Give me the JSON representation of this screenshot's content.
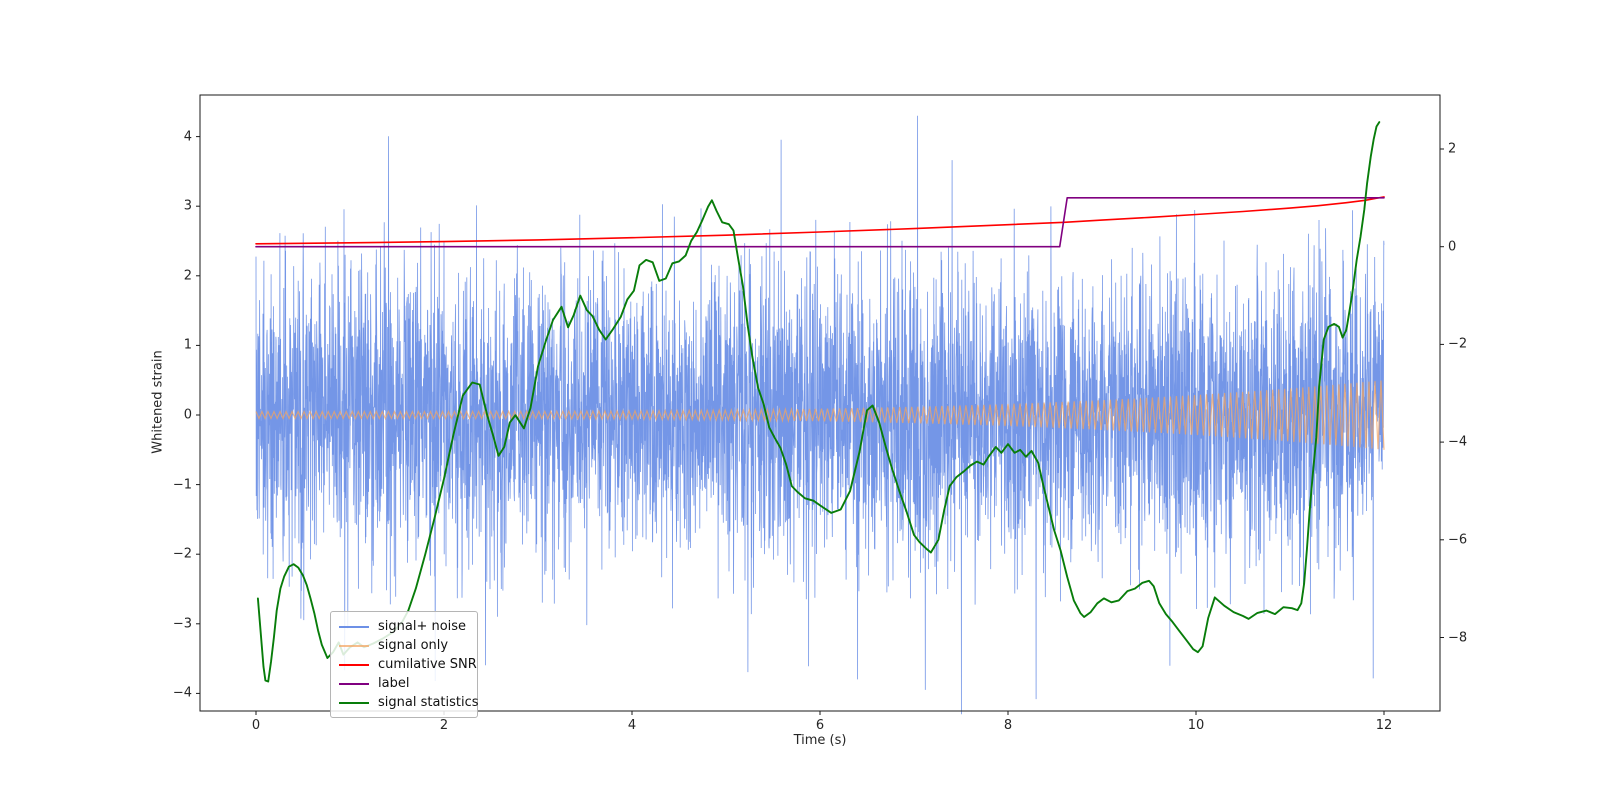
{
  "axes": {
    "xlabel": "Time (s)",
    "ylabel_left": "Whitened strain"
  },
  "legend": {
    "entries": [
      {
        "label": "signal+ noise",
        "color": "#6d90e6",
        "opacity": 1.0
      },
      {
        "label": "signal only",
        "color": "#f4a460",
        "opacity": 0.72
      },
      {
        "label": "cumilative SNR",
        "color": "#ff0000",
        "opacity": 1.0
      },
      {
        "label": "label",
        "color": "#800080",
        "opacity": 1.0
      },
      {
        "label": "signal statistics",
        "color": "#087d0a",
        "opacity": 1.0
      }
    ]
  },
  "chart_data": {
    "type": "line",
    "title": "",
    "xlabel": "Time (s)",
    "ylabel_left": "Whitened strain",
    "ylabel_right": "",
    "x_range": [
      -0.6,
      12.6
    ],
    "y_left_range": [
      -4.25,
      4.6
    ],
    "y_right_range": [
      -9.5,
      3.1
    ],
    "x_tick_values": [
      0,
      2,
      4,
      6,
      8,
      10,
      12
    ],
    "y_left_tick_values": [
      4,
      3,
      2,
      1,
      0,
      -1,
      -2,
      -3,
      -4
    ],
    "y_right_tick_values": [
      2,
      0,
      -2,
      -4,
      -6,
      -8
    ],
    "grid": false,
    "legend_position": "lower left",
    "series": [
      {
        "name": "signal+ noise",
        "axis": "left",
        "kind": "noise",
        "color": "#6d90e6",
        "opacity": 0.95,
        "width": 0.8,
        "params": {
          "seed": 42,
          "n": 5000,
          "t_min": 0,
          "t_max": 12,
          "sigma": 1.05,
          "spike_threshold": 3.1,
          "spike_scale": 1.15,
          "clip": 4.3,
          "observed_band": [
            -2.6,
            2.6
          ],
          "observed_extremes": [
            -3.9,
            4.2
          ]
        }
      },
      {
        "name": "signal only",
        "axis": "left",
        "kind": "chirp",
        "color": "#f4a460",
        "opacity": 0.72,
        "width": 1.2,
        "params": {
          "t_min": 0,
          "t_max": 12,
          "step": 0.032,
          "amp0": 0.05,
          "amp_gain": 0.45,
          "power": 3.5,
          "amp_end": 0.5
        }
      },
      {
        "name": "cumilative SNR",
        "axis": "right",
        "kind": "line",
        "color": "#ff0000",
        "width": 1.6,
        "points": [
          [
            0,
            0.06
          ],
          [
            1,
            0.08
          ],
          [
            2,
            0.105
          ],
          [
            3,
            0.14
          ],
          [
            4,
            0.185
          ],
          [
            5,
            0.235
          ],
          [
            6,
            0.3
          ],
          [
            7,
            0.37
          ],
          [
            8,
            0.45
          ],
          [
            8.6,
            0.5
          ],
          [
            9,
            0.545
          ],
          [
            9.5,
            0.6
          ],
          [
            10,
            0.66
          ],
          [
            10.5,
            0.72
          ],
          [
            11,
            0.79
          ],
          [
            11.3,
            0.84
          ],
          [
            11.6,
            0.9
          ],
          [
            11.8,
            0.95
          ],
          [
            12,
            1.02
          ]
        ]
      },
      {
        "name": "label",
        "axis": "right",
        "kind": "line",
        "color": "#800080",
        "width": 1.6,
        "points": [
          [
            0,
            0
          ],
          [
            8.55,
            0
          ],
          [
            8.63,
            1.0
          ],
          [
            12,
            1.0
          ]
        ]
      },
      {
        "name": "signal statistics",
        "axis": "right",
        "kind": "line",
        "color": "#087d0a",
        "width": 1.9,
        "points": [
          [
            0.02,
            -7.2
          ],
          [
            0.05,
            -7.9
          ],
          [
            0.08,
            -8.6
          ],
          [
            0.1,
            -8.88
          ],
          [
            0.13,
            -8.9
          ],
          [
            0.16,
            -8.5
          ],
          [
            0.19,
            -8.0
          ],
          [
            0.22,
            -7.45
          ],
          [
            0.26,
            -7.0
          ],
          [
            0.3,
            -6.75
          ],
          [
            0.35,
            -6.55
          ],
          [
            0.4,
            -6.5
          ],
          [
            0.45,
            -6.57
          ],
          [
            0.5,
            -6.73
          ],
          [
            0.54,
            -6.93
          ],
          [
            0.58,
            -7.2
          ],
          [
            0.62,
            -7.5
          ],
          [
            0.66,
            -7.85
          ],
          [
            0.7,
            -8.15
          ],
          [
            0.76,
            -8.42
          ],
          [
            0.82,
            -8.3
          ],
          [
            0.88,
            -8.1
          ],
          [
            0.93,
            -8.35
          ],
          [
            1.0,
            -8.2
          ],
          [
            1.08,
            -8.1
          ],
          [
            1.15,
            -8.2
          ],
          [
            1.25,
            -8.12
          ],
          [
            1.35,
            -8.02
          ],
          [
            1.45,
            -7.9
          ],
          [
            1.55,
            -7.7
          ],
          [
            1.62,
            -7.45
          ],
          [
            1.7,
            -7.0
          ],
          [
            1.8,
            -6.3
          ],
          [
            1.9,
            -5.55
          ],
          [
            2.0,
            -4.75
          ],
          [
            2.1,
            -3.85
          ],
          [
            2.2,
            -3.05
          ],
          [
            2.3,
            -2.78
          ],
          [
            2.38,
            -2.82
          ],
          [
            2.46,
            -3.45
          ],
          [
            2.52,
            -3.85
          ],
          [
            2.58,
            -4.28
          ],
          [
            2.64,
            -4.1
          ],
          [
            2.7,
            -3.6
          ],
          [
            2.76,
            -3.45
          ],
          [
            2.85,
            -3.72
          ],
          [
            2.92,
            -3.3
          ],
          [
            3.0,
            -2.45
          ],
          [
            3.08,
            -1.95
          ],
          [
            3.16,
            -1.5
          ],
          [
            3.25,
            -1.23
          ],
          [
            3.32,
            -1.65
          ],
          [
            3.38,
            -1.4
          ],
          [
            3.45,
            -1.0
          ],
          [
            3.52,
            -1.3
          ],
          [
            3.58,
            -1.42
          ],
          [
            3.65,
            -1.7
          ],
          [
            3.72,
            -1.9
          ],
          [
            3.8,
            -1.68
          ],
          [
            3.88,
            -1.44
          ],
          [
            3.95,
            -1.08
          ],
          [
            4.02,
            -0.9
          ],
          [
            4.08,
            -0.38
          ],
          [
            4.15,
            -0.27
          ],
          [
            4.22,
            -0.32
          ],
          [
            4.29,
            -0.7
          ],
          [
            4.36,
            -0.65
          ],
          [
            4.43,
            -0.34
          ],
          [
            4.5,
            -0.3
          ],
          [
            4.57,
            -0.18
          ],
          [
            4.63,
            0.12
          ],
          [
            4.69,
            0.3
          ],
          [
            4.75,
            0.55
          ],
          [
            4.81,
            0.82
          ],
          [
            4.85,
            0.95
          ],
          [
            4.9,
            0.73
          ],
          [
            4.96,
            0.5
          ],
          [
            5.03,
            0.46
          ],
          [
            5.08,
            0.33
          ],
          [
            5.13,
            -0.25
          ],
          [
            5.18,
            -0.8
          ],
          [
            5.23,
            -1.6
          ],
          [
            5.28,
            -2.25
          ],
          [
            5.34,
            -2.88
          ],
          [
            5.4,
            -3.22
          ],
          [
            5.46,
            -3.7
          ],
          [
            5.52,
            -3.92
          ],
          [
            5.58,
            -4.12
          ],
          [
            5.64,
            -4.46
          ],
          [
            5.7,
            -4.9
          ],
          [
            5.76,
            -5.02
          ],
          [
            5.84,
            -5.15
          ],
          [
            5.93,
            -5.2
          ],
          [
            6.02,
            -5.32
          ],
          [
            6.12,
            -5.45
          ],
          [
            6.22,
            -5.38
          ],
          [
            6.32,
            -5.0
          ],
          [
            6.42,
            -4.2
          ],
          [
            6.5,
            -3.35
          ],
          [
            6.56,
            -3.25
          ],
          [
            6.63,
            -3.6
          ],
          [
            6.7,
            -4.1
          ],
          [
            6.76,
            -4.5
          ],
          [
            6.84,
            -4.98
          ],
          [
            6.92,
            -5.42
          ],
          [
            7.0,
            -5.9
          ],
          [
            7.06,
            -6.05
          ],
          [
            7.13,
            -6.18
          ],
          [
            7.18,
            -6.26
          ],
          [
            7.26,
            -6.0
          ],
          [
            7.32,
            -5.4
          ],
          [
            7.38,
            -4.9
          ],
          [
            7.45,
            -4.72
          ],
          [
            7.53,
            -4.6
          ],
          [
            7.6,
            -4.48
          ],
          [
            7.67,
            -4.4
          ],
          [
            7.74,
            -4.46
          ],
          [
            7.8,
            -4.28
          ],
          [
            7.87,
            -4.1
          ],
          [
            7.93,
            -4.22
          ],
          [
            8.0,
            -4.04
          ],
          [
            8.07,
            -4.22
          ],
          [
            8.13,
            -4.16
          ],
          [
            8.19,
            -4.3
          ],
          [
            8.25,
            -4.18
          ],
          [
            8.32,
            -4.42
          ],
          [
            8.38,
            -4.92
          ],
          [
            8.44,
            -5.4
          ],
          [
            8.49,
            -5.8
          ],
          [
            8.56,
            -6.22
          ],
          [
            8.63,
            -6.76
          ],
          [
            8.7,
            -7.24
          ],
          [
            8.77,
            -7.5
          ],
          [
            8.81,
            -7.58
          ],
          [
            8.88,
            -7.48
          ],
          [
            8.95,
            -7.3
          ],
          [
            9.02,
            -7.2
          ],
          [
            9.1,
            -7.28
          ],
          [
            9.18,
            -7.24
          ],
          [
            9.27,
            -7.05
          ],
          [
            9.35,
            -7.0
          ],
          [
            9.43,
            -6.88
          ],
          [
            9.5,
            -6.84
          ],
          [
            9.55,
            -6.95
          ],
          [
            9.61,
            -7.3
          ],
          [
            9.68,
            -7.52
          ],
          [
            9.75,
            -7.68
          ],
          [
            9.82,
            -7.86
          ],
          [
            9.9,
            -8.06
          ],
          [
            9.97,
            -8.24
          ],
          [
            10.02,
            -8.3
          ],
          [
            10.07,
            -8.18
          ],
          [
            10.13,
            -7.6
          ],
          [
            10.2,
            -7.18
          ],
          [
            10.3,
            -7.35
          ],
          [
            10.4,
            -7.48
          ],
          [
            10.5,
            -7.56
          ],
          [
            10.56,
            -7.62
          ],
          [
            10.65,
            -7.5
          ],
          [
            10.75,
            -7.45
          ],
          [
            10.84,
            -7.52
          ],
          [
            10.93,
            -7.38
          ],
          [
            11.02,
            -7.4
          ],
          [
            11.08,
            -7.44
          ],
          [
            11.12,
            -7.3
          ],
          [
            11.15,
            -6.9
          ],
          [
            11.18,
            -6.2
          ],
          [
            11.21,
            -5.4
          ],
          [
            11.24,
            -4.7
          ],
          [
            11.28,
            -3.9
          ],
          [
            11.31,
            -2.87
          ],
          [
            11.36,
            -1.9
          ],
          [
            11.41,
            -1.64
          ],
          [
            11.47,
            -1.58
          ],
          [
            11.52,
            -1.64
          ],
          [
            11.56,
            -1.86
          ],
          [
            11.6,
            -1.7
          ],
          [
            11.66,
            -1.0
          ],
          [
            11.71,
            -0.27
          ],
          [
            11.75,
            0.2
          ],
          [
            11.79,
            0.76
          ],
          [
            11.82,
            1.3
          ],
          [
            11.86,
            1.85
          ],
          [
            11.89,
            2.2
          ],
          [
            11.92,
            2.46
          ],
          [
            11.95,
            2.55
          ]
        ]
      }
    ]
  }
}
